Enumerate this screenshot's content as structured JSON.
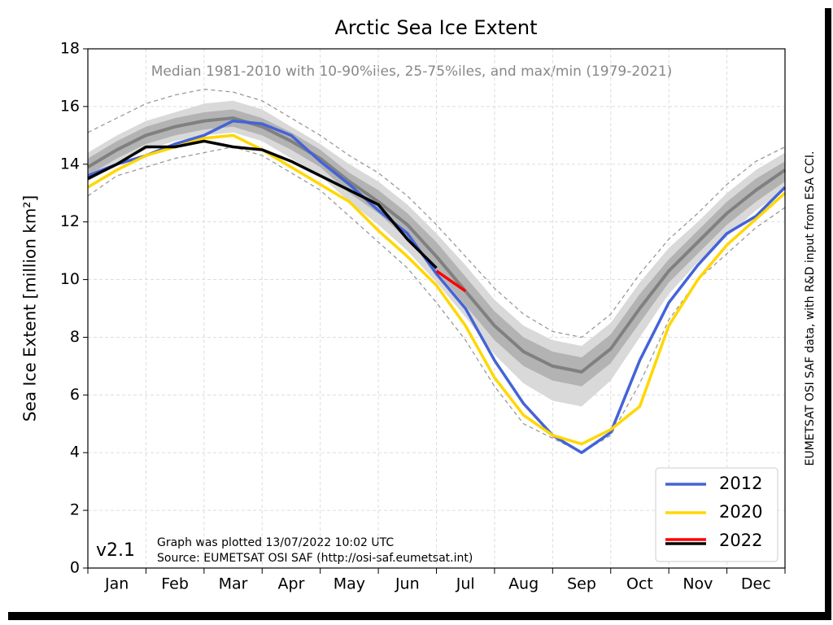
{
  "chart_data": {
    "type": "line",
    "title": "Arctic Sea Ice Extent",
    "subtitle": "Median 1981-2010 with 10-90%iles, 25-75%iles, and max/min (1979-2021)",
    "y_label": "Sea Ice Extent [million km²]",
    "side_note": "EUMETSAT OSI SAF data, with R&D input from ESA CCI.",
    "version": "v2.1",
    "notes": [
      "Graph was plotted 13/07/2022 10:02 UTC",
      "Source: EUMETSAT OSI SAF (http://osi-saf.eumetsat.int)"
    ],
    "categories": [
      null,
      "Jan",
      null,
      "Feb",
      null,
      "Mar",
      null,
      "Apr",
      null,
      "May",
      null,
      "Jun",
      null,
      "Jul",
      null,
      "Aug",
      null,
      "Sep",
      null,
      "Oct",
      null,
      "Nov",
      null,
      "Dec",
      null
    ],
    "ylim": [
      0,
      18
    ],
    "yticks": [
      0,
      2,
      4,
      6,
      8,
      10,
      12,
      14,
      16,
      18
    ],
    "grid": true,
    "legend": "lower right",
    "minmax": {
      "color": "#999999",
      "upper": [
        15.1,
        15.6,
        16.1,
        16.4,
        16.6,
        16.5,
        16.2,
        15.6,
        15.0,
        14.3,
        13.7,
        12.9,
        11.9,
        10.8,
        9.7,
        8.8,
        8.2,
        8.0,
        8.8,
        10.2,
        11.4,
        12.3,
        13.3,
        14.1,
        14.6
      ],
      "lower": [
        12.9,
        13.6,
        13.9,
        14.2,
        14.4,
        14.6,
        14.3,
        13.7,
        13.1,
        12.2,
        11.3,
        10.4,
        9.2,
        7.9,
        6.3,
        5.0,
        4.5,
        4.0,
        4.6,
        6.4,
        8.6,
        10.0,
        10.9,
        11.8,
        12.5
      ]
    },
    "bands": [
      {
        "color": "#d9d9d9",
        "upper": [
          14.4,
          15.0,
          15.5,
          15.8,
          16.1,
          16.2,
          15.9,
          15.3,
          14.7,
          14.0,
          13.4,
          12.6,
          11.6,
          10.5,
          9.3,
          8.4,
          7.9,
          7.7,
          8.5,
          9.9,
          11.1,
          12.0,
          13.0,
          13.8,
          14.4
        ],
        "lower": [
          13.4,
          14.0,
          14.5,
          14.8,
          15.0,
          15.1,
          14.8,
          14.2,
          13.6,
          12.7,
          11.9,
          11.0,
          9.9,
          8.7,
          7.4,
          6.4,
          5.8,
          5.6,
          6.5,
          8.0,
          9.5,
          10.6,
          11.5,
          12.4,
          13.1
        ]
      },
      {
        "color": "#b3b3b3",
        "upper": [
          14.2,
          14.8,
          15.3,
          15.6,
          15.8,
          15.9,
          15.6,
          15.1,
          14.5,
          13.7,
          13.1,
          12.3,
          11.3,
          10.1,
          8.9,
          8.0,
          7.5,
          7.3,
          8.1,
          9.5,
          10.7,
          11.7,
          12.7,
          13.5,
          14.1
        ],
        "lower": [
          13.6,
          14.2,
          14.7,
          15.0,
          15.2,
          15.3,
          15.0,
          14.5,
          13.9,
          13.0,
          12.3,
          11.4,
          10.3,
          9.1,
          7.9,
          7.0,
          6.5,
          6.3,
          7.1,
          8.5,
          9.9,
          10.9,
          11.9,
          12.7,
          13.4
        ]
      }
    ],
    "median": {
      "color": "#808080",
      "values": [
        13.9,
        14.5,
        15.0,
        15.3,
        15.5,
        15.6,
        15.3,
        14.8,
        14.2,
        13.4,
        12.7,
        11.9,
        10.8,
        9.6,
        8.4,
        7.5,
        7.0,
        6.8,
        7.6,
        9.0,
        10.3,
        11.3,
        12.3,
        13.1,
        13.8
      ]
    },
    "series": [
      {
        "name": "2012",
        "color": "#4363d8",
        "values": [
          13.6,
          14.0,
          14.3,
          14.7,
          15.0,
          15.5,
          15.4,
          15.0,
          14.1,
          13.3,
          12.4,
          11.6,
          10.2,
          9.0,
          7.2,
          5.7,
          4.6,
          4.0,
          4.7,
          7.2,
          9.2,
          10.5,
          11.6,
          12.2,
          13.2
        ]
      },
      {
        "name": "2020",
        "color": "#ffd700",
        "values": [
          13.2,
          13.8,
          14.3,
          14.6,
          14.9,
          15.0,
          14.5,
          13.9,
          13.3,
          12.7,
          11.7,
          10.8,
          9.8,
          8.4,
          6.6,
          5.3,
          4.6,
          4.3,
          4.8,
          5.6,
          8.4,
          10.0,
          11.2,
          12.1,
          13.0
        ]
      },
      {
        "name": "2022",
        "color": "#000000",
        "values": [
          13.5,
          14.0,
          14.6,
          14.6,
          14.8,
          14.6,
          14.5,
          14.1,
          13.6,
          13.1,
          12.6,
          11.4,
          10.4,
          null,
          null,
          null,
          null,
          null,
          null,
          null,
          null,
          null,
          null,
          null,
          null
        ],
        "recent_color": "#ff0000",
        "recent_values": [
          null,
          null,
          null,
          null,
          null,
          null,
          null,
          null,
          null,
          null,
          null,
          null,
          10.3,
          9.6,
          null,
          null,
          null,
          null,
          null,
          null,
          null,
          null,
          null,
          null,
          null
        ]
      }
    ]
  }
}
